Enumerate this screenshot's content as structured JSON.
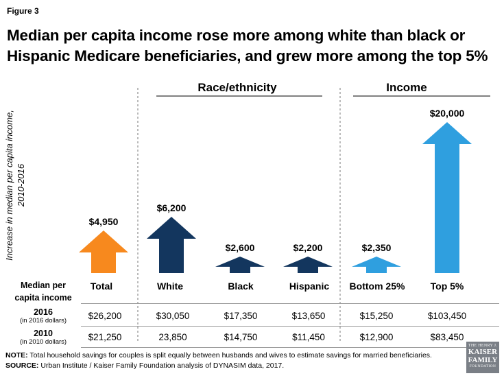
{
  "figure_label": "Figure 3",
  "title": "Median per capita income rose more among white than black or Hispanic Medicare beneficiaries, and grew more among the top 5%",
  "colors": {
    "orange": "#f7891e",
    "navy": "#13365e",
    "lightblue": "#2f9fdf",
    "divider": "#777777"
  },
  "chart_data": {
    "type": "bar",
    "title": "Median per capita income rose more among white than black or Hispanic Medicare beneficiaries, and grew more among the top 5%",
    "ylabel": "Increase in median per capita income, 2010-2016",
    "groups": [
      "Race/ethnicity",
      "Income"
    ],
    "categories": [
      "Total",
      "White",
      "Black",
      "Hispanic",
      "Bottom 25%",
      "Top 5%"
    ],
    "values": [
      4950,
      6200,
      2600,
      2200,
      2350,
      20000
    ],
    "data_labels": [
      "$4,950",
      "$6,200",
      "$2,600",
      "$2,200",
      "$2,350",
      "$20,000"
    ],
    "series_colors": [
      "orange",
      "navy",
      "navy",
      "navy",
      "lightblue",
      "lightblue"
    ],
    "ylim": [
      0,
      20000
    ],
    "mark": "arrow"
  },
  "table": {
    "header_line1": "Median per",
    "header_line2": "capita income",
    "rows": [
      {
        "year": "2016",
        "note": "(in 2016 dollars)",
        "values": [
          "$26,200",
          "$30,050",
          "$17,350",
          "$13,650",
          "$15,250",
          "$103,450"
        ]
      },
      {
        "year": "2010",
        "note": "(in 2010 dollars)",
        "values": [
          "$21,250",
          "23,850",
          "$14,750",
          "$11,450",
          "$12,900",
          "$83,450"
        ]
      }
    ]
  },
  "notes": {
    "note_label": "NOTE:",
    "note_text": " Total household savings for couples is split equally between husbands and wives to estimate savings for married beneficiaries.",
    "source_label": "SOURCE:",
    "source_text": " Urban Institute / Kaiser Family Foundation analysis of DYNASIM data, 2017."
  },
  "logo": {
    "line1": "THE HENRY J.",
    "line2": "KAISER",
    "line3": "FAMILY",
    "line4": "FOUNDATION"
  }
}
